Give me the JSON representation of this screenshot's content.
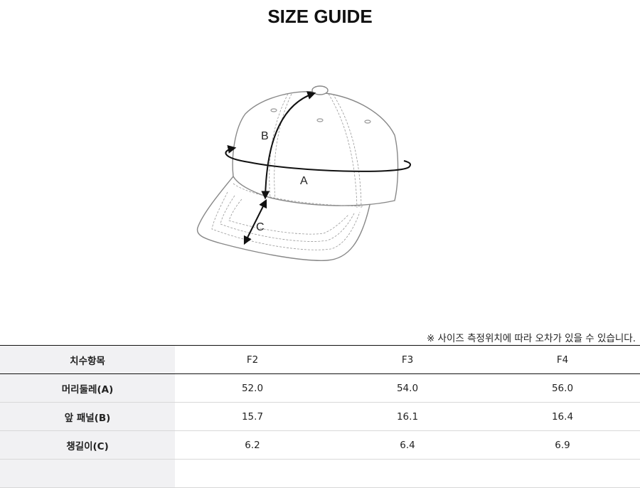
{
  "title": "SIZE GUIDE",
  "diagram_labels": {
    "a": "A",
    "b": "B",
    "c": "C"
  },
  "note": "※ 사이즈 측정위치에 따라 오차가 있을 수 있습니다.",
  "table": {
    "header": {
      "label": "치수항목",
      "sizes": [
        "F2",
        "F3",
        "F4"
      ]
    },
    "rows": [
      {
        "label": "머리둘레(A)",
        "values": [
          "52.0",
          "54.0",
          "56.0"
        ]
      },
      {
        "label": "앞 패널(B)",
        "values": [
          "15.7",
          "16.1",
          "16.4"
        ]
      },
      {
        "label": "챙길이(C)",
        "values": [
          "6.2",
          "6.4",
          "6.9"
        ]
      }
    ]
  }
}
